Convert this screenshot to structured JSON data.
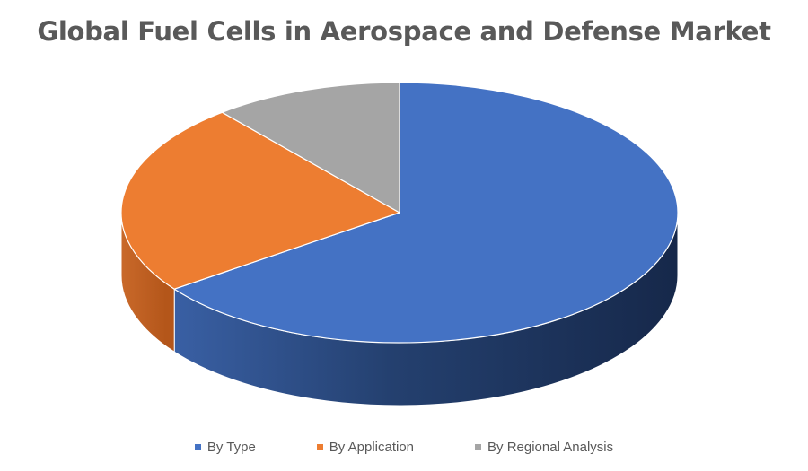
{
  "chart_data": {
    "type": "pie",
    "title": "Global Fuel Cells in Aerospace and Defense Market",
    "categories": [
      "By Type",
      "By Application",
      "By Regional Analysis"
    ],
    "values": [
      65,
      24,
      11
    ],
    "colors": [
      "#4472C4",
      "#ED7D31",
      "#A5A5A5"
    ],
    "legend_position": "bottom",
    "style": "3d"
  }
}
